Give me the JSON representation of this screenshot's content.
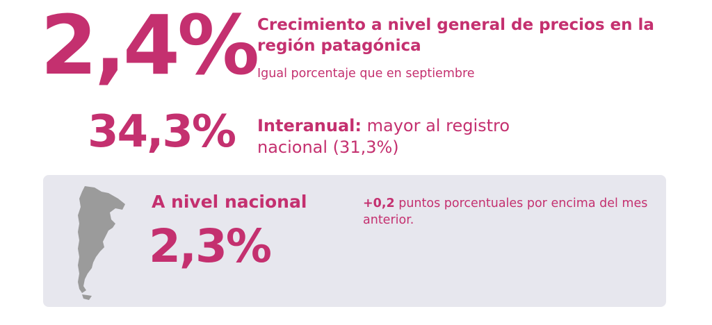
{
  "monthly": {
    "value": "2,4%",
    "headline": "Crecimiento a nivel general de precios en la región patagónica",
    "subheadline": "Igual porcentaje que en septiembre"
  },
  "interannual": {
    "value": "34,3%",
    "label": "Interanual:",
    "text": " mayor al registro nacional (31,3%)"
  },
  "national": {
    "title": "A nivel nacional",
    "value": "2,3%",
    "delta": "+0,2",
    "delta_text": " puntos porcentuales por encima del mes anterior."
  },
  "colors": {
    "accent": "#c4306f",
    "panel_bg": "#e7e7ee",
    "map_fill": "#9b9b9b"
  }
}
